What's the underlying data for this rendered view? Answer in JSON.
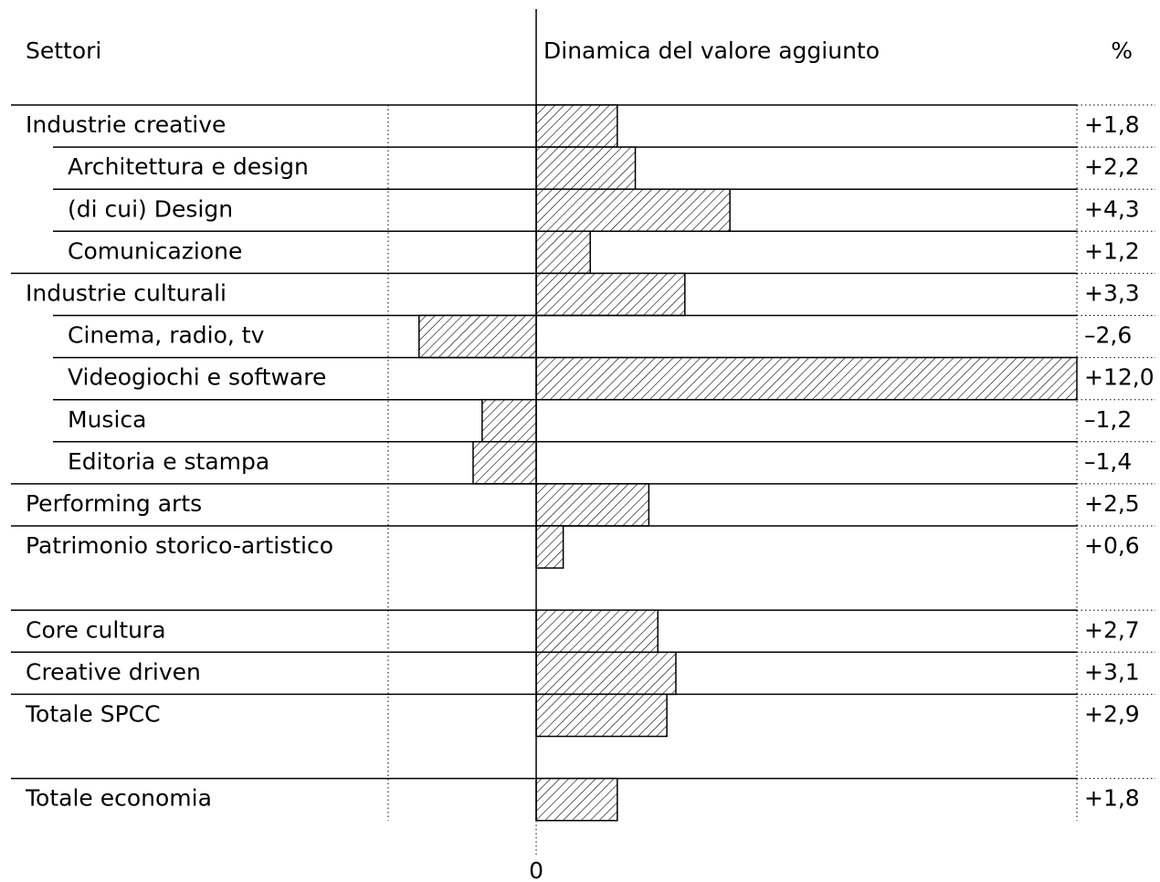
{
  "chart_data": {
    "type": "bar",
    "orientation": "horizontal",
    "category_header": "Settori",
    "value_header": "Dinamica del valore aggiunto",
    "unit_header": "%",
    "categories": [
      "Industrie creative",
      "Architettura e design",
      "(di cui) Design",
      "Comunicazione",
      "Industrie culturali",
      "Cinema, radio, tv",
      "Videogiochi e software",
      "Musica",
      "Editoria e stampa",
      "Performing arts",
      "Patrimonio storico-artistico",
      "Core cultura",
      "Creative driven",
      "Totale SPCC",
      "Totale economia"
    ],
    "values": [
      1.8,
      2.2,
      4.3,
      1.2,
      3.3,
      -2.6,
      12.0,
      -1.2,
      -1.4,
      2.5,
      0.6,
      2.7,
      3.1,
      2.9,
      1.8
    ],
    "value_labels": [
      "+1,8",
      "+2,2",
      "+4,3",
      "+1,2",
      "+3,3",
      "–2,6",
      "+12,0",
      "–1,2",
      "–1,4",
      "+2,5",
      "+0,6",
      "+2,7",
      "+3,1",
      "+2,9",
      "+1,8"
    ],
    "color": "#000000",
    "xlim": [
      -11.9,
      12
    ],
    "xticks": [
      0
    ]
  }
}
